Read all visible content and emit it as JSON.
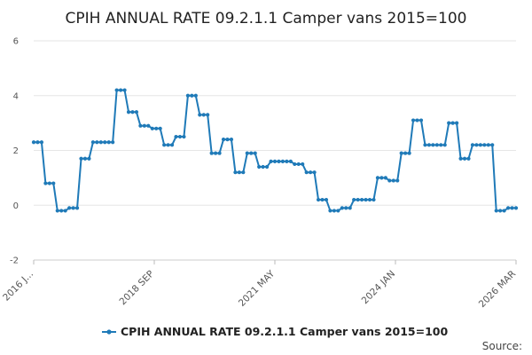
{
  "chart_data": {
    "type": "line",
    "title": "CPIH ANNUAL RATE 09.2.1.1 Camper vans 2015=100",
    "xlabel": "",
    "ylabel": "",
    "ylim": [
      -2,
      6
    ],
    "yticks": [
      "-2",
      "0",
      "2",
      "4",
      "6"
    ],
    "x_tick_labels": [
      "2016 J...",
      "2018 SEP",
      "2021 MAY",
      "2024 JAN",
      "2026 MAR"
    ],
    "legend_position": "bottom",
    "grid": true,
    "series_color": "#1f7ab8",
    "series": [
      {
        "name": "CPIH ANNUAL RATE 09.2.1.1 Camper vans 2015=100",
        "values": [
          2.3,
          2.3,
          2.3,
          0.8,
          0.8,
          0.8,
          -0.2,
          -0.2,
          -0.2,
          -0.1,
          -0.1,
          -0.1,
          1.7,
          1.7,
          1.7,
          2.3,
          2.3,
          2.3,
          2.3,
          2.3,
          2.3,
          4.2,
          4.2,
          4.2,
          3.4,
          3.4,
          3.4,
          2.9,
          2.9,
          2.9,
          2.8,
          2.8,
          2.8,
          2.2,
          2.2,
          2.2,
          2.5,
          2.5,
          2.5,
          4.0,
          4.0,
          4.0,
          3.3,
          3.3,
          3.3,
          1.9,
          1.9,
          1.9,
          2.4,
          2.4,
          2.4,
          1.2,
          1.2,
          1.2,
          1.9,
          1.9,
          1.9,
          1.4,
          1.4,
          1.4,
          1.6,
          1.6,
          1.6,
          1.6,
          1.6,
          1.6,
          1.5,
          1.5,
          1.5,
          1.2,
          1.2,
          1.2,
          0.2,
          0.2,
          0.2,
          -0.2,
          -0.2,
          -0.2,
          -0.1,
          -0.1,
          -0.1,
          0.2,
          0.2,
          0.2,
          0.2,
          0.2,
          0.2,
          1.0,
          1.0,
          1.0,
          0.9,
          0.9,
          0.9,
          1.9,
          1.9,
          1.9,
          3.1,
          3.1,
          3.1,
          2.2,
          2.2,
          2.2,
          2.2,
          2.2,
          2.2,
          3.0,
          3.0,
          3.0,
          1.7,
          1.7,
          1.7,
          2.2,
          2.2,
          2.2,
          2.2,
          2.2,
          2.2,
          -0.2,
          -0.2,
          -0.2,
          -0.1,
          -0.1,
          -0.1
        ]
      }
    ]
  },
  "footer": {
    "source_label": "Source:"
  }
}
